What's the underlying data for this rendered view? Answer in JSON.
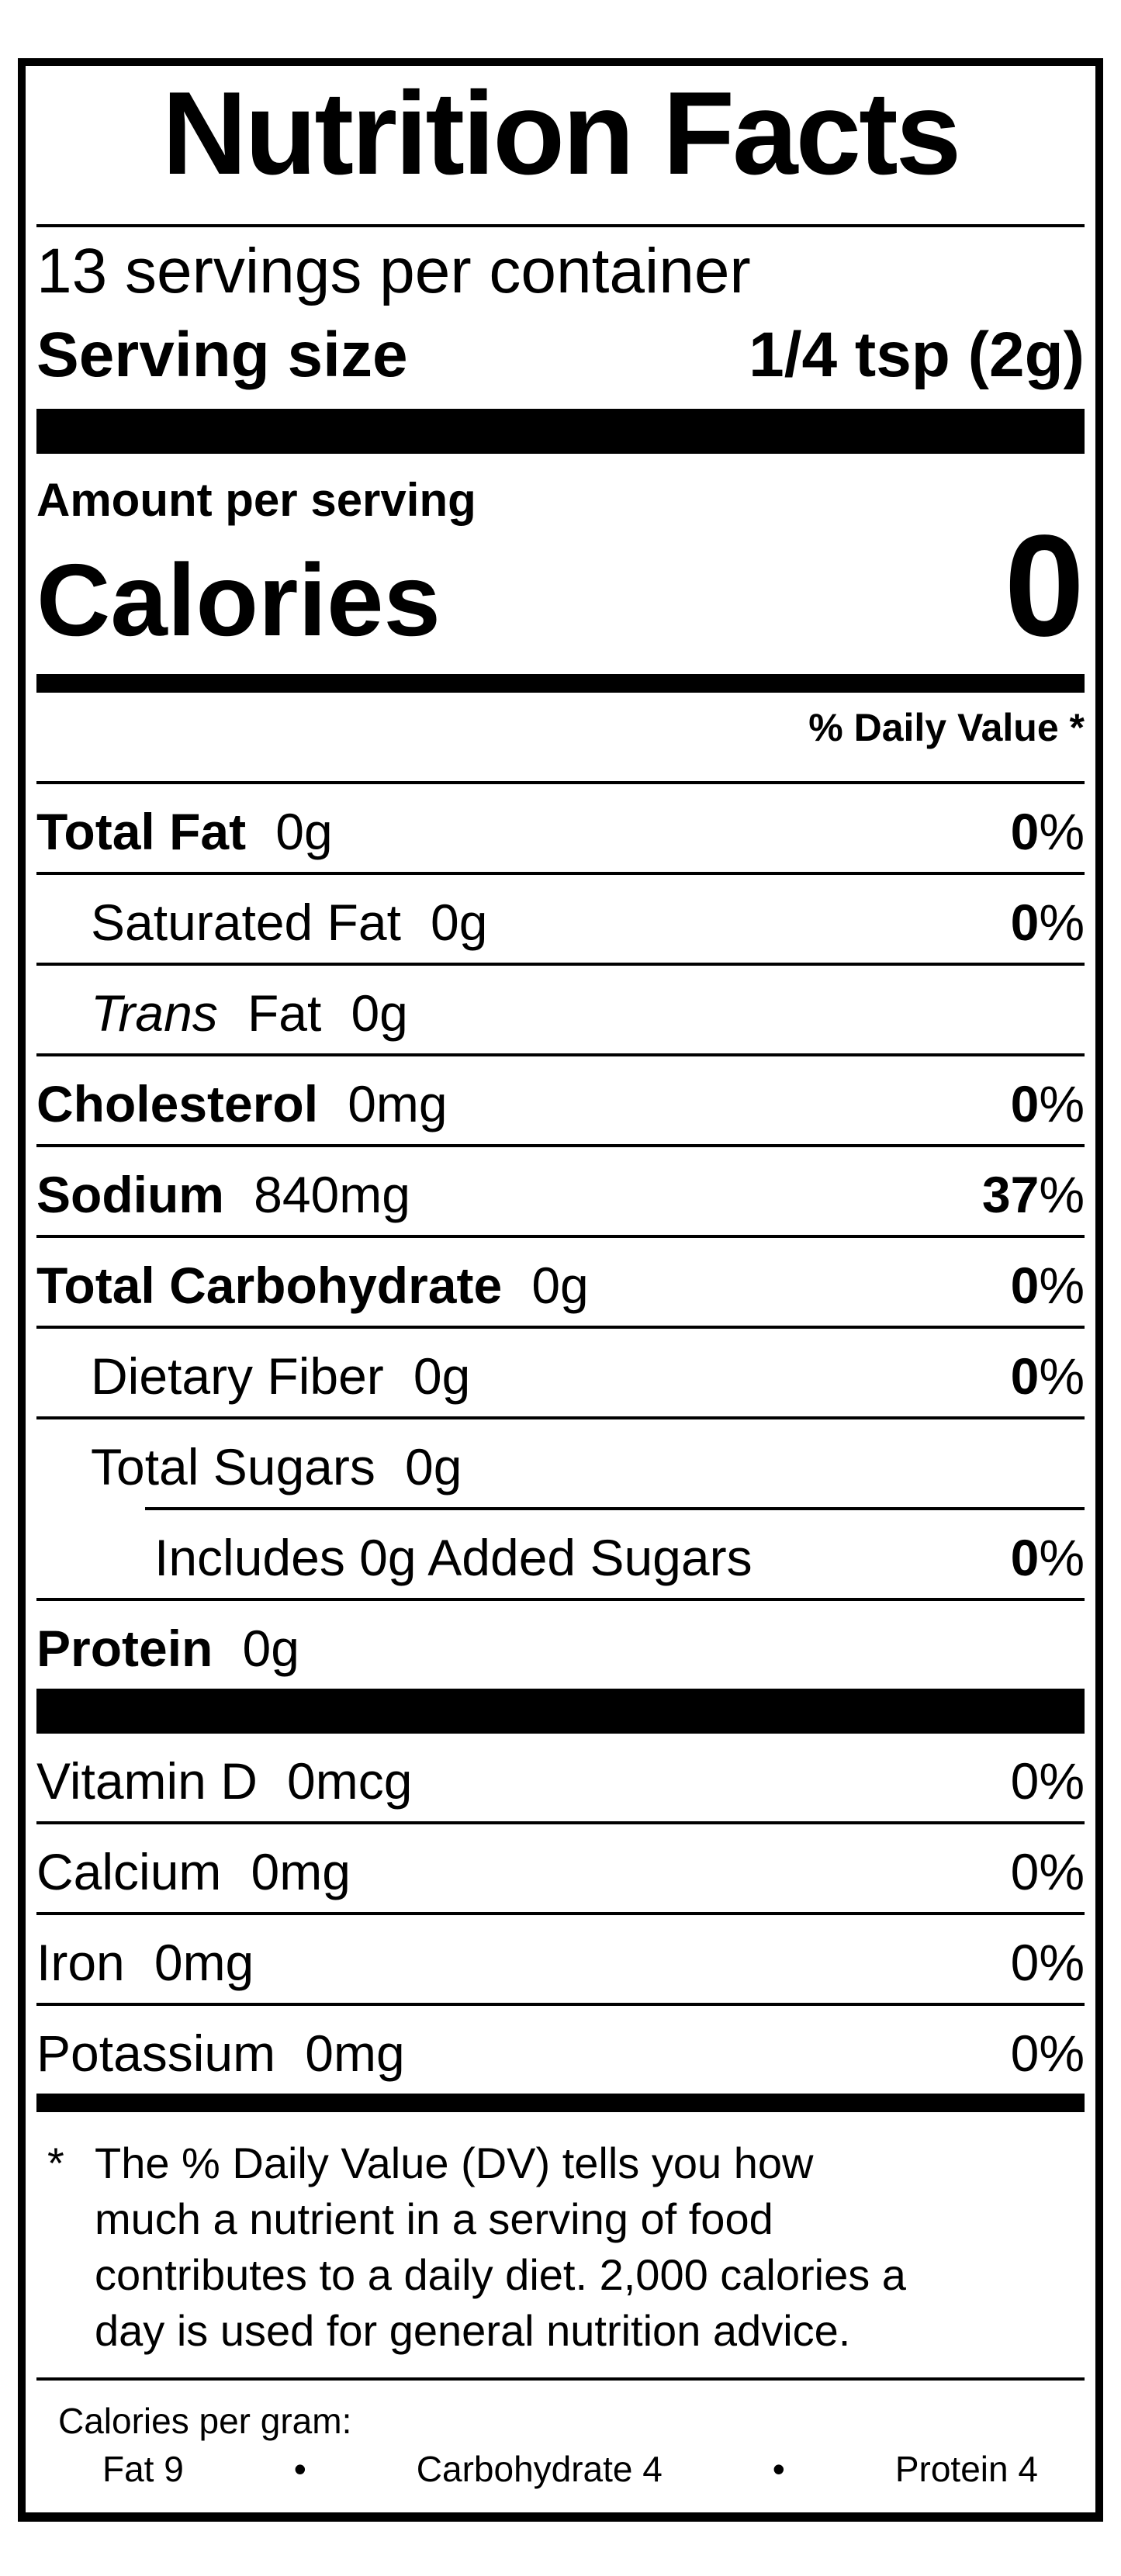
{
  "label": {
    "title": "Nutrition Facts",
    "servings_per_container": "13 servings per container",
    "serving_size": {
      "label": "Serving size",
      "value": "1/4 tsp (2g)"
    },
    "amount_per_serving": "Amount per serving",
    "calories": {
      "label": "Calories",
      "value": "0"
    },
    "daily_value_header": "% Daily Value *",
    "nutrient_rows": [
      {
        "name": "Total Fat",
        "amount": "0g",
        "dv": "0",
        "pct": "%"
      },
      {
        "name": "Saturated Fat",
        "amount": "0g",
        "dv": "0",
        "pct": "%"
      },
      {
        "name_italic": "Trans",
        "name": "Fat",
        "amount": "0g"
      },
      {
        "name": "Cholesterol",
        "amount": "0mg",
        "dv": "0",
        "pct": "%"
      },
      {
        "name": "Sodium",
        "amount": "840mg",
        "dv": "37",
        "pct": "%"
      },
      {
        "name": "Total Carbohydrate",
        "amount": "0g",
        "dv": "0",
        "pct": "%"
      },
      {
        "name": "Dietary Fiber",
        "amount": "0g",
        "dv": "0",
        "pct": "%"
      },
      {
        "name": "Total Sugars",
        "amount": "0g"
      },
      {
        "name": "Includes 0g Added Sugars",
        "dv": "0",
        "pct": "%"
      },
      {
        "name": "Protein",
        "amount": "0g"
      }
    ],
    "vitamin_rows": [
      {
        "name": "Vitamin D",
        "amount": "0mcg",
        "dv": "0",
        "pct": "%"
      },
      {
        "name": "Calcium",
        "amount": "0mg",
        "dv": "0",
        "pct": "%"
      },
      {
        "name": "Iron",
        "amount": "0mg",
        "dv": "0",
        "pct": "%"
      },
      {
        "name": "Potassium",
        "amount": "0mg",
        "dv": "0",
        "pct": "%"
      }
    ],
    "footnote": {
      "marker": "*",
      "lines": [
        "The % Daily Value (DV) tells you how",
        "much a nutrient in a serving of food",
        "contributes to a daily diet. 2,000 calories a",
        "day is used for general nutrition advice."
      ]
    },
    "calories_per_gram": {
      "label": "Calories per gram:",
      "bullet": "•",
      "items": [
        "Fat 9",
        "Carbohydrate 4",
        "Protein 4"
      ]
    },
    "colors": {
      "ink": "#000000",
      "paper": "#ffffff"
    }
  }
}
